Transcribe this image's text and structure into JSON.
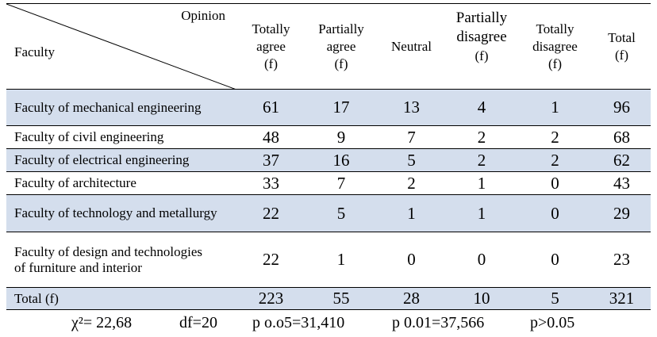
{
  "header": {
    "opinion_label": "Opinion",
    "faculty_label": "Faculty",
    "columns": [
      {
        "line1": "Totally",
        "line2": "agree",
        "line3": "(f)"
      },
      {
        "line1": "Partially",
        "line2": "agree",
        "line3": "(f)"
      },
      {
        "line1": "Neutral"
      },
      {
        "line1": "Partially",
        "line2": "disagree",
        "line3": "(f)"
      },
      {
        "line1": "Totally",
        "line2": "disagree",
        "line3": "(f)"
      },
      {
        "line1": "Total",
        "line2": "(f)"
      }
    ]
  },
  "rows": [
    {
      "name": "Faculty of mechanical engineering",
      "values": [
        "61",
        "17",
        "13",
        "4",
        "1",
        "96"
      ]
    },
    {
      "name": "Faculty of civil engineering",
      "values": [
        "48",
        "9",
        "7",
        "2",
        "2",
        "68"
      ]
    },
    {
      "name": "Faculty of electrical engineering",
      "values": [
        "37",
        "16",
        "5",
        "2",
        "2",
        "62"
      ]
    },
    {
      "name": "Faculty of architecture",
      "values": [
        "33",
        "7",
        "2",
        "1",
        "0",
        "43"
      ]
    },
    {
      "name": "Faculty of technology and metallurgy",
      "values": [
        "22",
        "5",
        "1",
        "1",
        "0",
        "29"
      ]
    },
    {
      "name": "Faculty of design and technologies of furniture and interior",
      "values": [
        "22",
        "1",
        "0",
        "0",
        "0",
        "23"
      ]
    }
  ],
  "total_row": {
    "name": "Total (f)",
    "values": [
      "223",
      "55",
      "28",
      "10",
      "5",
      "321"
    ]
  },
  "stats": {
    "chi_square": "χ²= 22,68",
    "df": "df=20",
    "p005": "p o.o5=31,410",
    "p001": "p 0.01=37,566",
    "p": "p>0.05"
  },
  "colors": {
    "shade": "#d4deed"
  }
}
